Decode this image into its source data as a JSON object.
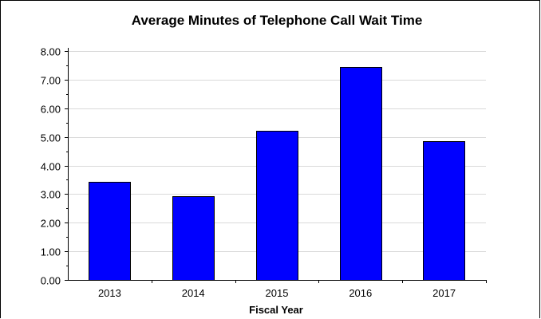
{
  "chart_data": {
    "type": "bar",
    "title": "Average Minutes of Telephone Call Wait Time",
    "xlabel": "Fiscal Year",
    "ylabel": "",
    "categories": [
      "2013",
      "2014",
      "2015",
      "2016",
      "2017"
    ],
    "values": [
      3.43,
      2.92,
      5.22,
      7.43,
      4.84
    ],
    "ylim": [
      0,
      8
    ],
    "yticks": [
      "0.00",
      "1.00",
      "2.00",
      "3.00",
      "4.00",
      "5.00",
      "6.00",
      "7.00",
      "8.00"
    ],
    "grid": true,
    "legend": "none",
    "bar_color": "#0000FF",
    "bar_edge_color": "#000000"
  }
}
